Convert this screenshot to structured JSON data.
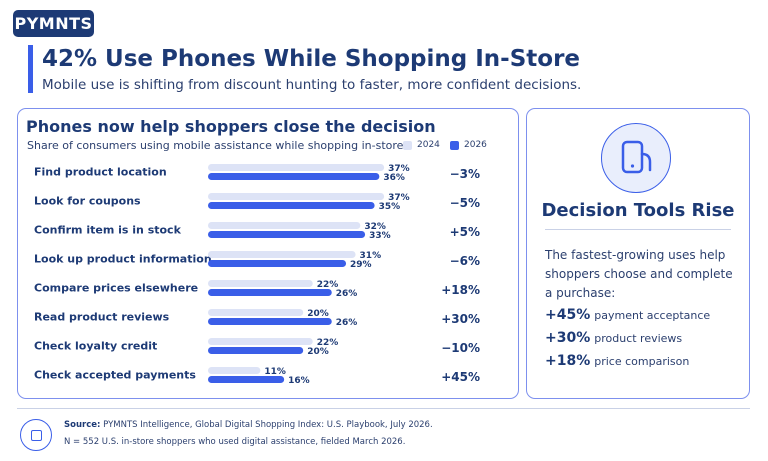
{
  "brand": {
    "logo": "PYMNTS"
  },
  "header": {
    "title": "42% Use Phones While Shopping In-Store",
    "subtitle": "Mobile use is shifting from discount hunting to faster, more confident decisions."
  },
  "colors": {
    "navy": "#1d3a75",
    "accent": "#3a5ee8",
    "bar_2024": "#dde3f6",
    "bar_2026": "#3a5ee8"
  },
  "chart_data": {
    "type": "bar",
    "orientation": "horizontal",
    "title": "Phones now help shoppers close the decision",
    "subtitle": "Share of consumers using mobile assistance while shopping in-store",
    "categories": [
      "Find product location",
      "Look for coupons",
      "Confirm item is in stock",
      "Look up product information",
      "Compare prices elsewhere",
      "Read product reviews",
      "Check loyalty credit",
      "Check accepted payments"
    ],
    "series": [
      {
        "name": "2024",
        "values": [
          37,
          37,
          32,
          31,
          22,
          20,
          22,
          11
        ]
      },
      {
        "name": "2026",
        "values": [
          36,
          35,
          33,
          29,
          26,
          26,
          20,
          16
        ]
      }
    ],
    "change_labels": [
      "−3%",
      "−5%",
      "+5%",
      "−6%",
      "+18%",
      "+30%",
      "−10%",
      "+45%"
    ],
    "value_suffix": "%",
    "legend_position": "top-right",
    "grid": false
  },
  "sidebar": {
    "icon": "phone-in-hand-icon",
    "title": "Decision Tools Rise",
    "body": "The fastest-growing uses help shoppers choose and complete a purchase:",
    "stats": [
      {
        "value": "+45%",
        "label": "payment acceptance"
      },
      {
        "value": "+30%",
        "label": "product reviews"
      },
      {
        "value": "+18%",
        "label": "price comparison"
      }
    ]
  },
  "footer": {
    "source_label": "Source:",
    "source_text": "PYMNTS Intelligence, Global Digital Shopping Index: U.S. Playbook, July 2026.",
    "note": "N = 552 U.S. in-store shoppers who used digital assistance, fielded March 2026."
  }
}
